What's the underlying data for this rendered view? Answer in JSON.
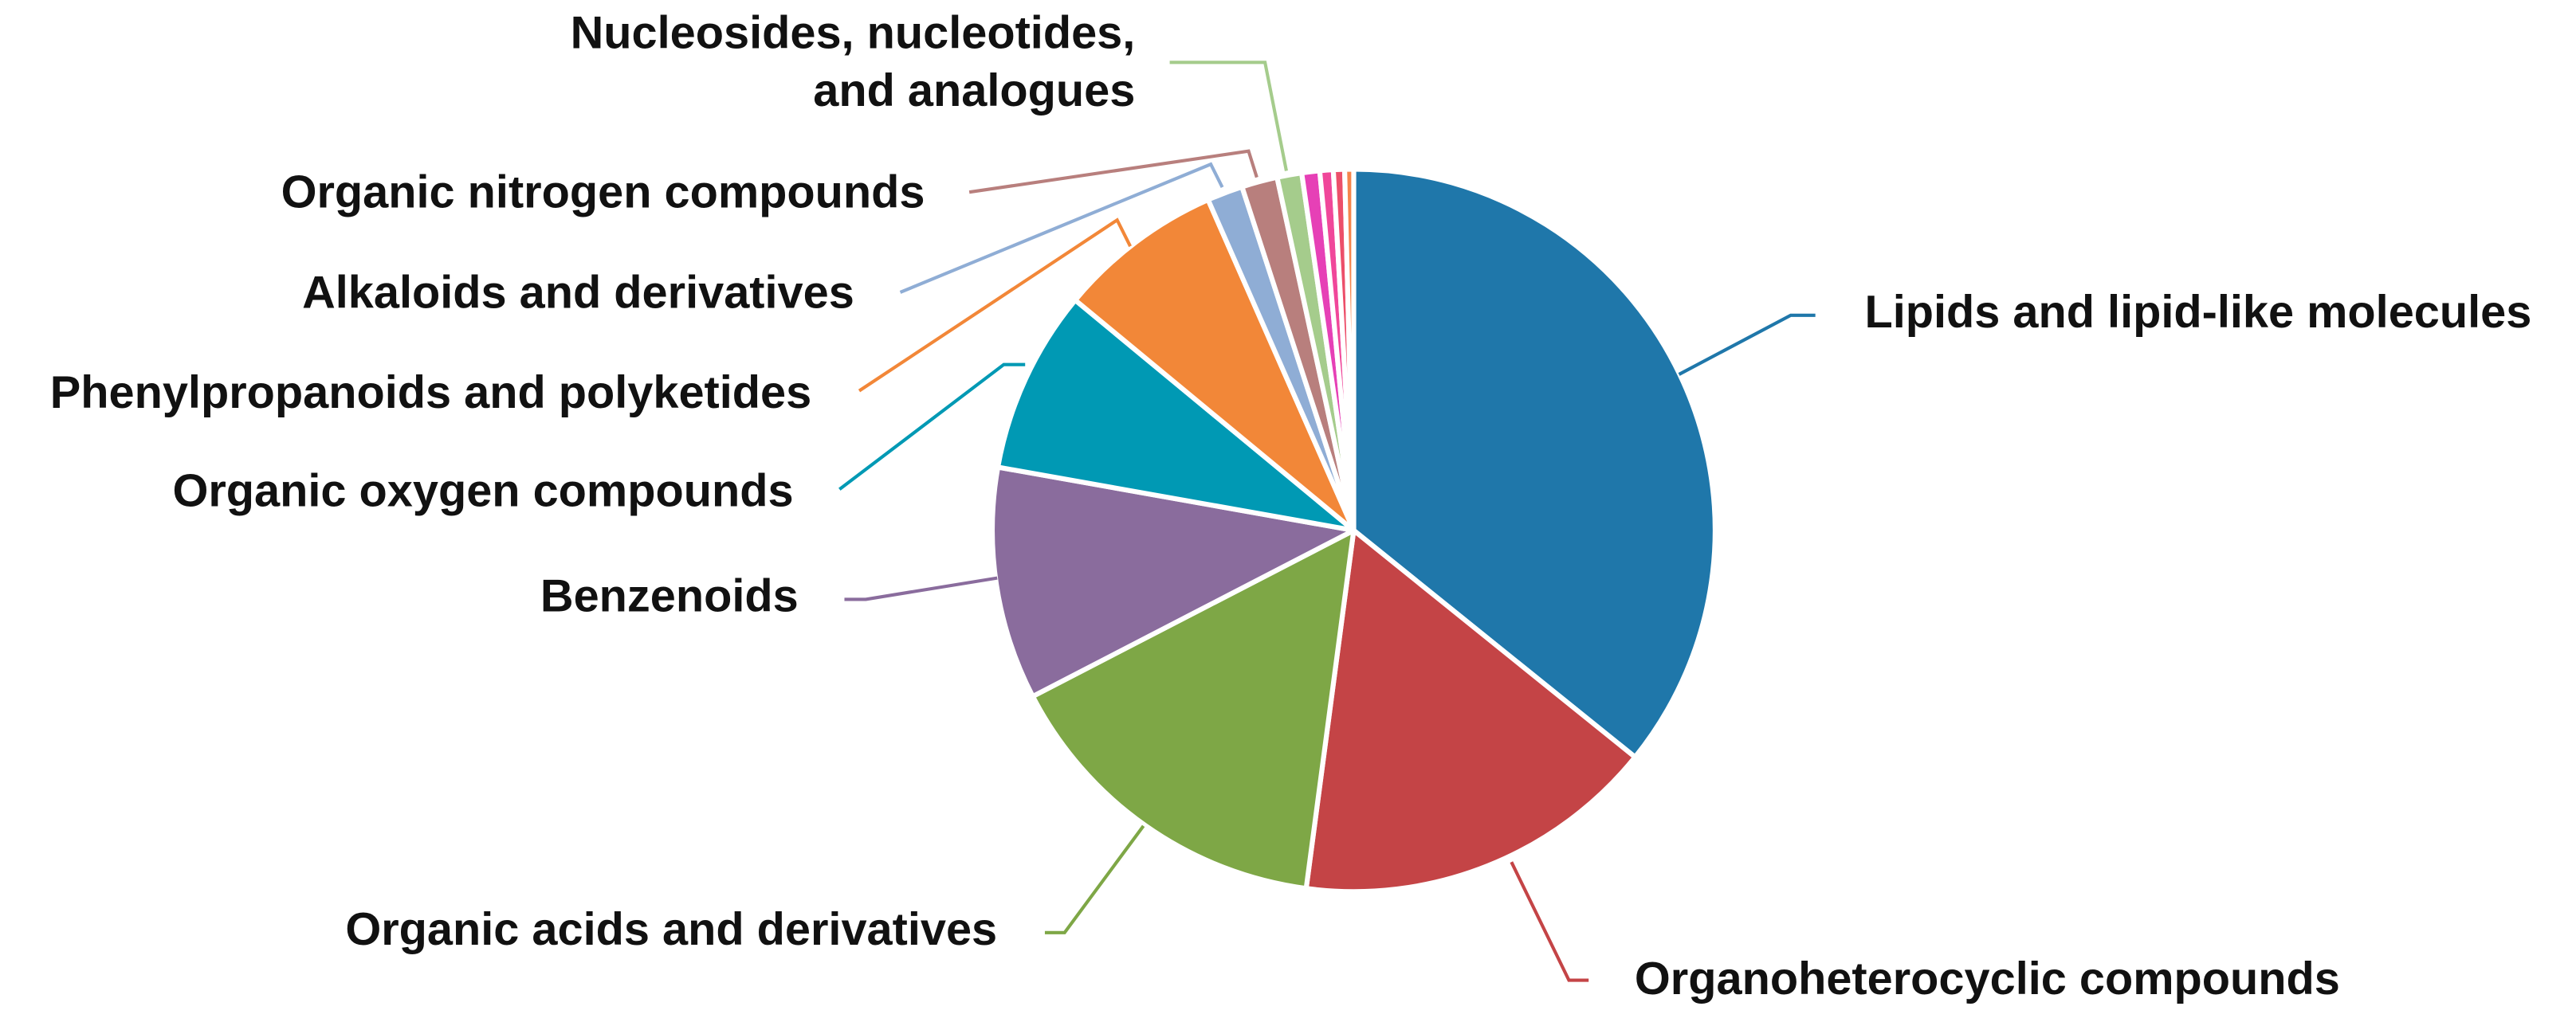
{
  "chart_data": {
    "type": "pie",
    "categories": [
      "Lipids and lipid-like molecules",
      "Organoheterocyclic compounds",
      "Organic acids and derivatives",
      "Benzenoids",
      "Organic oxygen compounds",
      "Phenylpropanoids and polyketides",
      "Alkaloids and derivatives",
      "Organic nitrogen compounds",
      [
        "Nucleosides, nucleotides,",
        "and analogues"
      ],
      null,
      null,
      null,
      null
    ],
    "values": [
      35.8,
      16.3,
      15.3,
      10.4,
      8.2,
      7.4,
      1.6,
      1.6,
      1.1,
      0.8,
      0.6,
      0.5,
      0.4
    ],
    "colors": [
      "#1f77aa",
      "#c44446",
      "#7ea746",
      "#8a6c9d",
      "#0099b4",
      "#f28738",
      "#8fadd5",
      "#b87f7d",
      "#a5cc8c",
      "#e640b6",
      "#f0479a",
      "#ec4f6a",
      "#f5854c"
    ]
  }
}
